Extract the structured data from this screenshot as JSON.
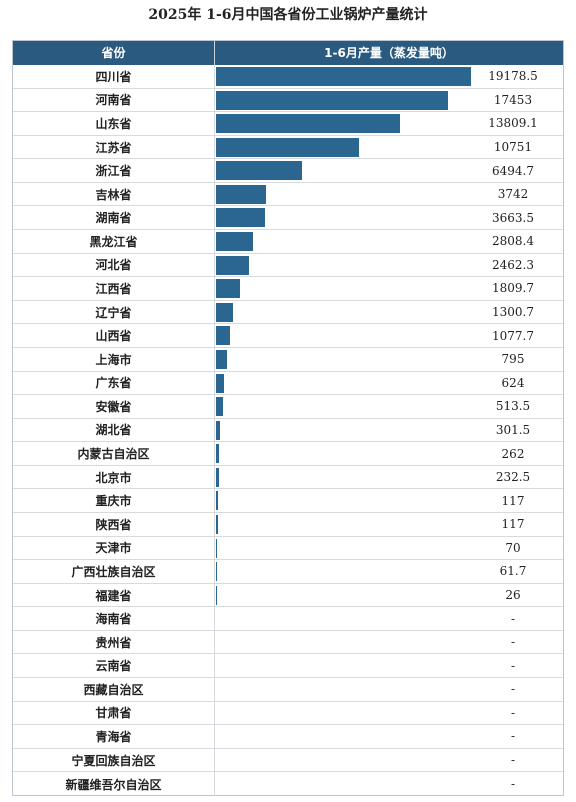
{
  "title": "2025年 1-6月中国各省份工业锅炉产量统计",
  "header": {
    "col_province": "省份",
    "col_value": "1-6月产量（蒸发量吨）"
  },
  "chart_data": {
    "type": "bar",
    "orientation": "horizontal",
    "title": "2025年 1-6月中国各省份工业锅炉产量统计",
    "categories": [
      "四川省",
      "河南省",
      "山东省",
      "江苏省",
      "浙江省",
      "吉林省",
      "湖南省",
      "黑龙江省",
      "河北省",
      "江西省",
      "辽宁省",
      "山西省",
      "上海市",
      "广东省",
      "安徽省",
      "湖北省",
      "内蒙古自治区",
      "北京市",
      "重庆市",
      "陕西省",
      "天津市",
      "广西壮族自治区",
      "福建省",
      "海南省",
      "贵州省",
      "云南省",
      "西藏自治区",
      "甘肃省",
      "青海省",
      "宁夏回族自治区",
      "新疆维吾尔自治区"
    ],
    "values": [
      19178.5,
      17453,
      13809.1,
      10751,
      6494.7,
      3742,
      3663.5,
      2808.4,
      2462.3,
      1809.7,
      1300.7,
      1077.7,
      795,
      624,
      513.5,
      301.5,
      262,
      232.5,
      117,
      117,
      70,
      61.7,
      26,
      null,
      null,
      null,
      null,
      null,
      null,
      null,
      null
    ],
    "value_labels": [
      "19178.5",
      "17453",
      "13809.1",
      "10751",
      "6494.7",
      "3742",
      "3663.5",
      "2808.4",
      "2462.3",
      "1809.7",
      "1300.7",
      "1077.7",
      "795",
      "624",
      "513.5",
      "301.5",
      "262",
      "232.5",
      "117",
      "117",
      "70",
      "61.7",
      "26",
      "-",
      "-",
      "-",
      "-",
      "-",
      "-",
      "-",
      "-"
    ],
    "xlim": [
      0,
      19178.5
    ],
    "bar_color": "#2b6690",
    "header_color": "#2b5a80"
  }
}
